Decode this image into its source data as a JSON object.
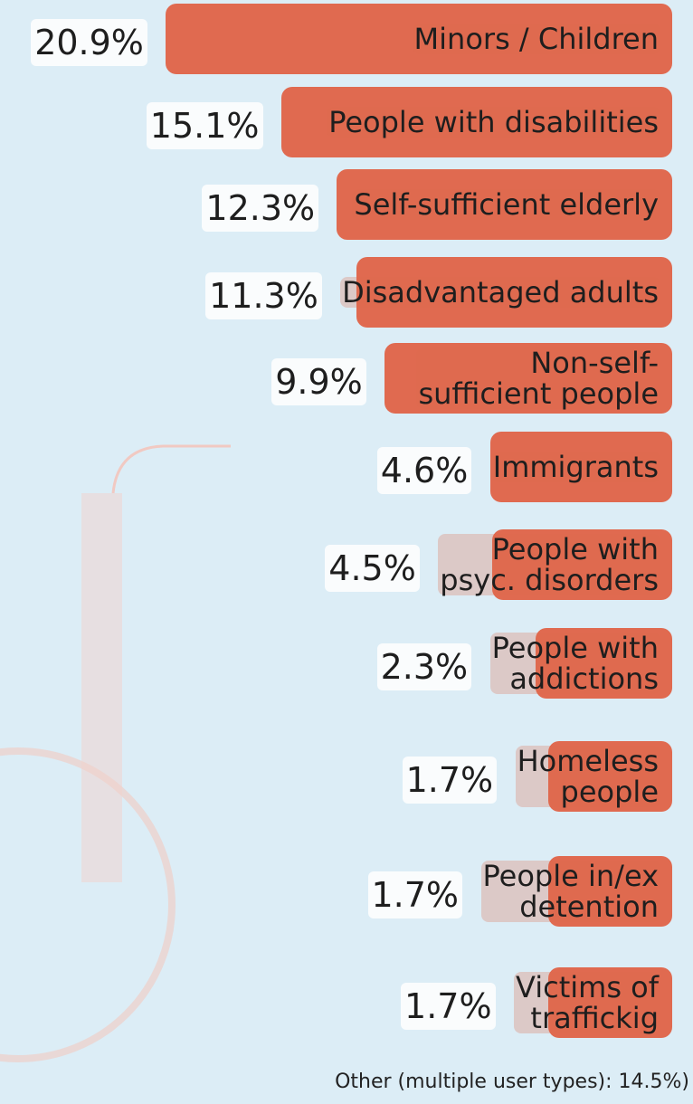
{
  "chart_data": {
    "type": "bar",
    "orientation": "horizontal",
    "color": "#e06a50",
    "categories": [
      "Minors / Children",
      "People with disabilities",
      "Self-sufficient elderly",
      "Disadvantaged adults",
      "Non-self-\nsufficient people",
      "Immigrants",
      "People with\npsyc. disorders",
      "People with\naddictions",
      "Homeless\npeople",
      "People in/ex\ndetention",
      "Victims of\ntraffickig"
    ],
    "values": [
      20.9,
      15.1,
      12.3,
      11.3,
      9.9,
      4.6,
      4.5,
      2.3,
      1.7,
      1.7,
      1.7
    ],
    "value_labels": [
      "20.9%",
      "15.1%",
      "12.3%",
      "11.3%",
      "9.9%",
      "4.6%",
      "4.5%",
      "2.3%",
      "1.7%",
      "1.7%",
      "1.7%"
    ],
    "note": "Other (multiple user types): 14.5%)"
  }
}
